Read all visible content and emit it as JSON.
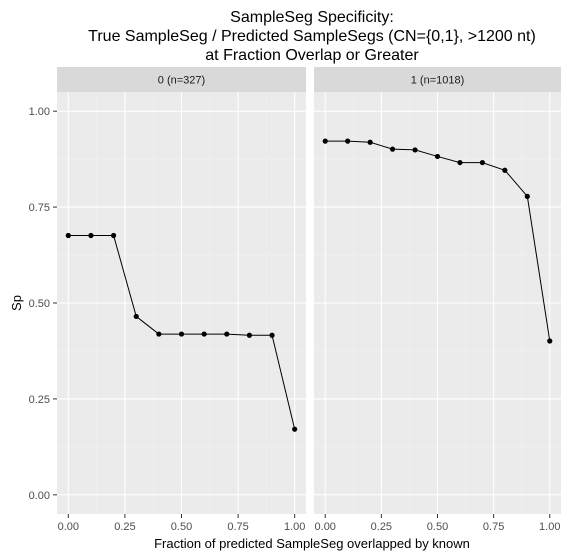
{
  "chart_data": {
    "type": "line",
    "title_lines": [
      "SampleSeg Specificity:",
      "True SampleSeg / Predicted SampleSegs (CN={0,1}, >1200 nt)",
      "at Fraction Overlap or Greater"
    ],
    "xlabel": "Fraction of predicted SampleSeg overlapped by known",
    "ylabel": "Sp",
    "xlim": [
      -0.05,
      1.05
    ],
    "ylim": [
      -0.05,
      1.05
    ],
    "x_ticks": [
      0.0,
      0.25,
      0.5,
      0.75,
      1.0
    ],
    "x_tick_labels": [
      "0.00",
      "0.25",
      "0.50",
      "0.75",
      "1.00"
    ],
    "y_ticks": [
      0.0,
      0.25,
      0.5,
      0.75,
      1.0
    ],
    "y_tick_labels": [
      "0.00",
      "0.25",
      "0.50",
      "0.75",
      "1.00"
    ],
    "grid": true,
    "panels": [
      {
        "label": "0 (n=327)",
        "x": [
          0.0,
          0.1,
          0.2,
          0.3,
          0.4,
          0.5,
          0.6,
          0.7,
          0.8,
          0.9,
          1.0
        ],
        "y": [
          0.676,
          0.676,
          0.676,
          0.465,
          0.419,
          0.419,
          0.419,
          0.419,
          0.416,
          0.416,
          0.171
        ]
      },
      {
        "label": "1 (n=1018)",
        "x": [
          0.0,
          0.1,
          0.2,
          0.3,
          0.4,
          0.5,
          0.6,
          0.7,
          0.8,
          0.9,
          1.0
        ],
        "y": [
          0.922,
          0.922,
          0.919,
          0.901,
          0.899,
          0.882,
          0.866,
          0.866,
          0.846,
          0.778,
          0.401
        ]
      }
    ],
    "colors": {
      "panel_bg": "#ebebeb",
      "strip_bg": "#d9d9d9",
      "grid_major": "#ffffff",
      "grid_minor": "#f2f2f2",
      "line": "#000000",
      "point": "#000000"
    }
  }
}
